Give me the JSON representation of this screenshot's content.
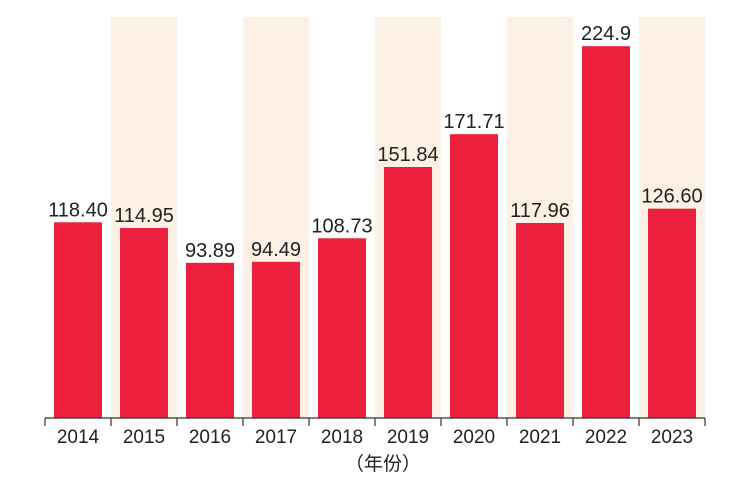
{
  "chart_data": {
    "type": "bar",
    "categories": [
      "2014",
      "2015",
      "2016",
      "2017",
      "2018",
      "2019",
      "2020",
      "2021",
      "2022",
      "2023"
    ],
    "values": [
      118.4,
      114.95,
      93.89,
      94.49,
      108.73,
      151.84,
      171.71,
      117.96,
      224.9,
      126.6
    ],
    "value_labels": [
      "118.40",
      "114.95",
      "93.89",
      "94.49",
      "108.73",
      "151.84",
      "171.71",
      "117.96",
      "224.9",
      "126.60"
    ],
    "xlabel": "（年份）",
    "ylabel": "",
    "ylim": [
      0,
      240
    ],
    "grid": false,
    "colors": {
      "bar": "#ec1f3c",
      "band": "#fdf0e4",
      "axis": "#333333",
      "text": "#222222"
    }
  }
}
